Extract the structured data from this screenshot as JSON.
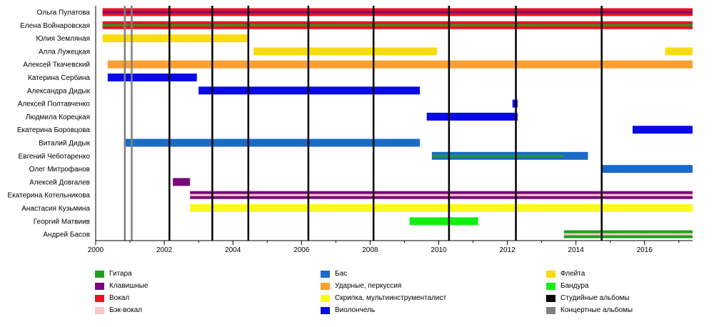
{
  "chart_data": {
    "type": "timeline",
    "title": "",
    "xlabel": "",
    "ylabel": "",
    "xlim": [
      2000,
      2017.4
    ],
    "x_ticks": [
      "2000",
      "2002",
      "2004",
      "2006",
      "2008",
      "2010",
      "2012",
      "2014",
      "2016"
    ],
    "grid": false,
    "colors": {
      "guitar": "#1f9f1f",
      "keys": "#7a0a7a",
      "vocals": "#e8141e",
      "backing": "#f9c8c8",
      "bass": "#1b6ac9",
      "drums": "#f9a030",
      "violin": "#f9f91e",
      "cello": "#0a0ae6",
      "flute": "#f7dd10",
      "bandura": "#12ef12",
      "studio": "#000000",
      "live": "#808080"
    },
    "members": [
      {
        "name": "Ольга Пулатова",
        "bars": [
          {
            "role": "vocals",
            "start": 2000.2,
            "end": 2017.4
          },
          {
            "role": "keys",
            "start": 2000.2,
            "end": 2017.4,
            "thin": true
          }
        ]
      },
      {
        "name": "Елена Войнаровская",
        "bars": [
          {
            "role": "vocals",
            "start": 2000.2,
            "end": 2017.4
          },
          {
            "role": "guitar",
            "start": 2000.2,
            "end": 2017.4,
            "thin": true
          }
        ]
      },
      {
        "name": "Юлия Земляная",
        "bars": [
          {
            "role": "flute",
            "start": 2000.2,
            "end": 2004.45
          }
        ]
      },
      {
        "name": "Алла Лужецкая",
        "bars": [
          {
            "role": "flute",
            "start": 2004.6,
            "end": 2009.95
          },
          {
            "role": "flute",
            "start": 2016.6,
            "end": 2017.4
          }
        ]
      },
      {
        "name": "Алексей Ткачевский",
        "bars": [
          {
            "role": "drums",
            "start": 2000.35,
            "end": 2017.4
          }
        ]
      },
      {
        "name": "Катерина Сербина",
        "bars": [
          {
            "role": "cello",
            "start": 2000.35,
            "end": 2002.95
          }
        ]
      },
      {
        "name": "Александра Дидык",
        "bars": [
          {
            "role": "cello",
            "start": 2003.0,
            "end": 2009.45
          }
        ]
      },
      {
        "name": "Алексей Полтавченко",
        "bars": [
          {
            "role": "cello",
            "start": 2012.15,
            "end": 2012.3
          }
        ]
      },
      {
        "name": "Людмила Корецкая",
        "bars": [
          {
            "role": "cello",
            "start": 2009.65,
            "end": 2012.3
          }
        ]
      },
      {
        "name": "Екатерина Боровцова",
        "bars": [
          {
            "role": "cello",
            "start": 2015.65,
            "end": 2017.4
          }
        ]
      },
      {
        "name": "Виталий Дидык",
        "bars": [
          {
            "role": "bass",
            "start": 2000.85,
            "end": 2009.45
          }
        ]
      },
      {
        "name": "Евгений Чеботаренко",
        "bars": [
          {
            "role": "bass",
            "start": 2009.8,
            "end": 2014.35
          },
          {
            "role": "guitar",
            "start": 2009.8,
            "end": 2013.65,
            "thin": true
          }
        ]
      },
      {
        "name": "Олег Митрофанов",
        "bars": [
          {
            "role": "bass",
            "start": 2014.75,
            "end": 2017.4
          }
        ]
      },
      {
        "name": "Алексей Довгалев",
        "bars": [
          {
            "role": "keys",
            "start": 2002.25,
            "end": 2002.75
          }
        ]
      },
      {
        "name": "Екатерина Котельникова",
        "bars": [
          {
            "role": "keys",
            "start": 2002.75,
            "end": 2017.4
          },
          {
            "role": "backing",
            "start": 2002.75,
            "end": 2017.4,
            "thin": true
          }
        ]
      },
      {
        "name": "Анастасия Кузьмина",
        "bars": [
          {
            "role": "violin",
            "start": 2002.75,
            "end": 2017.4
          }
        ]
      },
      {
        "name": "Георгий Матвиив",
        "bars": [
          {
            "role": "bandura",
            "start": 2009.15,
            "end": 2011.15
          }
        ]
      },
      {
        "name": "Андрей Басов",
        "bars": [
          {
            "role": "guitar",
            "start": 2013.65,
            "end": 2017.4
          },
          {
            "role": "backing",
            "start": 2013.65,
            "end": 2017.4,
            "thin": true
          }
        ]
      }
    ],
    "studio_albums": [
      2002.15,
      2003.4,
      2004.45,
      2006.2,
      2008.1,
      2010.3,
      2012.25,
      2014.75
    ],
    "concert_albums": [
      2000.85,
      2001.05
    ],
    "legend": [
      [
        {
          "label": "Гитара",
          "role": "guitar"
        },
        {
          "label": "Клавишные",
          "role": "keys"
        },
        {
          "label": "Вокал",
          "role": "vocals"
        },
        {
          "label": "Бэк-вокал",
          "role": "backing"
        }
      ],
      [
        {
          "label": "Бас",
          "role": "bass"
        },
        {
          "label": "Ударные, перкуссия",
          "role": "drums"
        },
        {
          "label": "Скрипка, мультиинструменталист",
          "role": "violin"
        },
        {
          "label": "Виолончель",
          "role": "cello"
        }
      ],
      [
        {
          "label": "Флейта",
          "role": "flute"
        },
        {
          "label": "Бандура",
          "role": "bandura"
        },
        {
          "label": "Студийные альбомы",
          "role": "studio"
        },
        {
          "label": "Концертные альбомы",
          "role": "live"
        }
      ]
    ]
  }
}
